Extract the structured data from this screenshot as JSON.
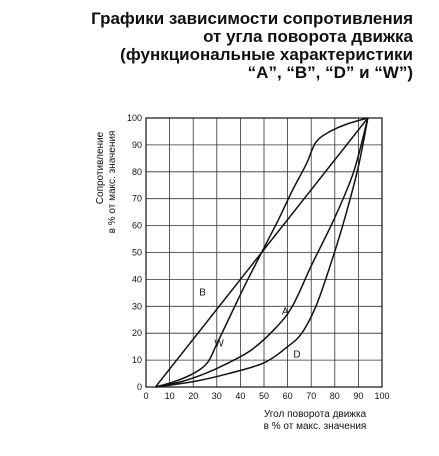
{
  "title_lines": [
    "Графики зависимости сопротивления",
    "от угла поворота движка",
    "(функциональные характеристики",
    "“A”, “B”, “D” и “W”)"
  ],
  "chart_data": {
    "type": "line",
    "xlabel_lines": [
      "Угол поворота движка",
      "в % от макс. значения"
    ],
    "ylabel_lines": [
      "Сопротивление",
      "в % от макс. значения"
    ],
    "xlim": [
      0,
      100
    ],
    "ylim": [
      0,
      100
    ],
    "x_ticks": [
      0,
      10,
      20,
      30,
      40,
      50,
      60,
      70,
      80,
      90,
      100
    ],
    "y_ticks": [
      0,
      10,
      20,
      30,
      40,
      50,
      60,
      70,
      80,
      90,
      100
    ],
    "grid": true,
    "series": [
      {
        "name": "A",
        "points": [
          [
            4,
            0
          ],
          [
            15,
            2
          ],
          [
            25,
            5
          ],
          [
            35,
            9
          ],
          [
            45,
            14
          ],
          [
            55,
            22
          ],
          [
            62,
            30
          ],
          [
            70,
            45
          ],
          [
            80,
            63
          ],
          [
            88,
            80
          ],
          [
            94,
            100
          ]
        ],
        "label_at": [
          59,
          27
        ]
      },
      {
        "name": "B",
        "points": [
          [
            4,
            0
          ],
          [
            94,
            100
          ]
        ],
        "label_at": [
          24,
          34
        ]
      },
      {
        "name": "D",
        "points": [
          [
            4,
            0
          ],
          [
            20,
            2
          ],
          [
            35,
            5
          ],
          [
            50,
            9
          ],
          [
            60,
            15
          ],
          [
            66,
            20
          ],
          [
            72,
            30
          ],
          [
            78,
            45
          ],
          [
            84,
            62
          ],
          [
            90,
            82
          ],
          [
            94,
            100
          ]
        ],
        "label_at": [
          64,
          11
        ]
      },
      {
        "name": "W",
        "points": [
          [
            4,
            0
          ],
          [
            12,
            2
          ],
          [
            20,
            5
          ],
          [
            26,
            9
          ],
          [
            30,
            16
          ],
          [
            36,
            27
          ],
          [
            42,
            38
          ],
          [
            49,
            50
          ],
          [
            56,
            62
          ],
          [
            62,
            73
          ],
          [
            68,
            83
          ],
          [
            72,
            91
          ],
          [
            78,
            95
          ],
          [
            86,
            98
          ],
          [
            94,
            100
          ]
        ],
        "label_at": [
          31,
          15
        ]
      }
    ]
  }
}
